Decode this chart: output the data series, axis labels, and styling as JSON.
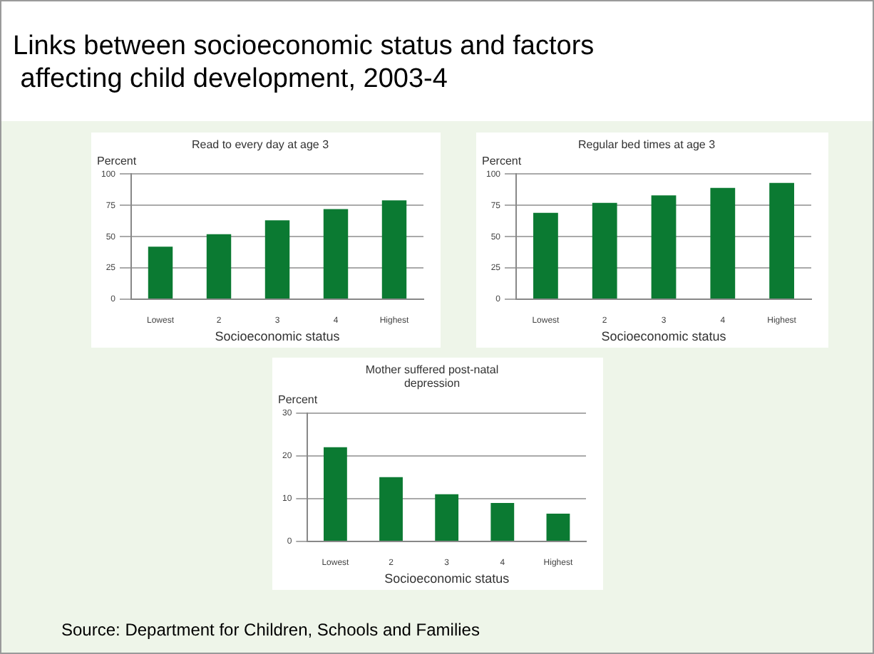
{
  "chart_data": [
    {
      "type": "other",
      "title": "Links between socioeconomic status and factors\n affecting child development, 2003-4",
      "annotations": [
        "Source: Department for Children, Schools and Families"
      ]
    },
    {
      "type": "bar",
      "title": "Read to every day at age 3",
      "ylabel": "Percent",
      "xlabel": "Socioeconomic status",
      "categories": [
        "Lowest",
        "2",
        "3",
        "4",
        "Highest"
      ],
      "values": [
        42,
        52,
        63,
        72,
        79
      ],
      "color": "#0b7a32",
      "ylim": [
        0,
        100
      ],
      "yticks": [
        0,
        25,
        50,
        75,
        100
      ],
      "grid": "y"
    },
    {
      "type": "bar",
      "title": "Regular bed times at age 3",
      "ylabel": "Percent",
      "xlabel": "Socioeconomic status",
      "categories": [
        "Lowest",
        "2",
        "3",
        "4",
        "Highest"
      ],
      "values": [
        69,
        77,
        83,
        89,
        93
      ],
      "color": "#0b7a32",
      "ylim": [
        0,
        100
      ],
      "yticks": [
        0,
        25,
        50,
        75,
        100
      ],
      "grid": "y"
    },
    {
      "type": "bar",
      "title": "Mother suffered post-natal\ndepression",
      "ylabel": "Percent",
      "xlabel": "Socioeconomic status",
      "categories": [
        "Lowest",
        "2",
        "3",
        "4",
        "Highest"
      ],
      "values": [
        22,
        15,
        11,
        9,
        6.5
      ],
      "color": "#0b7a32",
      "ylim": [
        0,
        30
      ],
      "yticks": [
        0,
        10,
        20,
        30
      ],
      "grid": "y"
    }
  ]
}
